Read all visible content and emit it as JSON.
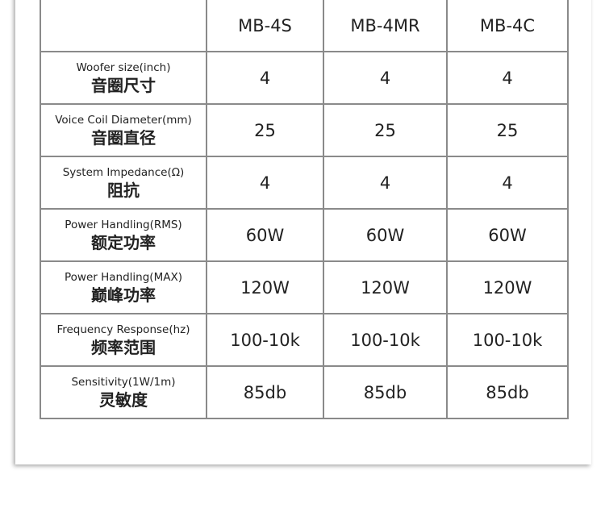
{
  "columns": [
    "",
    "MB-4S",
    "MB-4MR",
    "MB-4C"
  ],
  "rows": [
    {
      "en": "Woofer size(inch)",
      "zh": "音圈尺寸",
      "values": [
        "4",
        "4",
        "4"
      ]
    },
    {
      "en": "Voice Coil Diameter(mm)",
      "zh": "音圈直径",
      "values": [
        "25",
        "25",
        "25"
      ]
    },
    {
      "en": "System Impedance(Ω)",
      "zh": "阻抗",
      "values": [
        "4",
        "4",
        "4"
      ]
    },
    {
      "en": "Power Handling(RMS)",
      "zh": "额定功率",
      "values": [
        "60W",
        "60W",
        "60W"
      ]
    },
    {
      "en": "Power Handling(MAX)",
      "zh": "巅峰功率",
      "values": [
        "120W",
        "120W",
        "120W"
      ]
    },
    {
      "en": "Frequency Response(hz)",
      "zh": "频率范围",
      "values": [
        "100-10k",
        "100-10k",
        "100-10k"
      ]
    },
    {
      "en": "Sensitivity(1W/1m)",
      "zh": "灵敏度",
      "values": [
        "85db",
        "85db",
        "85db"
      ]
    }
  ]
}
